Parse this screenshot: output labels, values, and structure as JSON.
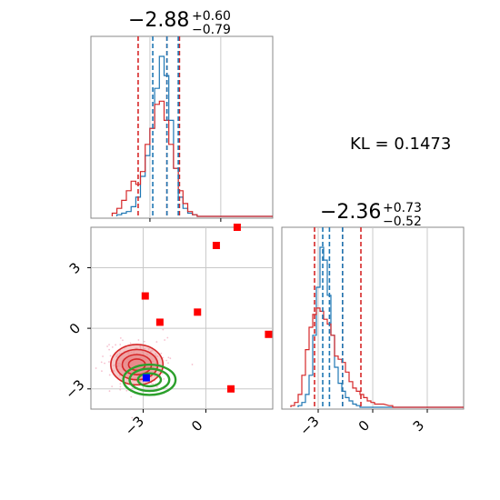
{
  "colors": {
    "blue": "#1f77b4",
    "red": "#d62728",
    "green": "#2ca02c",
    "marker_red": "#ff0000",
    "marker_blue": "#0000ff",
    "fill_red": "#e8898a",
    "grid": "#c8c8c8",
    "frame": "#888888"
  },
  "annotation": {
    "kl_text": "KL = 0.1473"
  },
  "chart_data": [
    {
      "type": "histogram",
      "panel": "top-left",
      "title": {
        "value": "−2.88",
        "upper": "+0.60",
        "lower": "−0.79"
      },
      "xlim": [
        -5.5,
        2.2
      ],
      "grid": true,
      "vlines": {
        "blue": [
          -2.88,
          -2.28,
          -1.8
        ],
        "red": [
          -3.5,
          -2.28,
          -1.75
        ]
      },
      "series": [
        {
          "color": "blue",
          "bin_centers": [
            -4.3,
            -4.1,
            -3.9,
            -3.7,
            -3.5,
            -3.3,
            -3.1,
            -2.9,
            -2.7,
            -2.5,
            -2.3,
            -2.1,
            -1.9,
            -1.7,
            -1.5,
            -1.3,
            -1.1,
            -0.9
          ],
          "heights": [
            0.01,
            0.02,
            0.03,
            0.06,
            0.12,
            0.25,
            0.38,
            0.55,
            0.8,
            1.0,
            0.88,
            0.6,
            0.3,
            0.12,
            0.05,
            0.02,
            0.01,
            0.0
          ]
        },
        {
          "color": "red",
          "bin_centers": [
            -4.5,
            -4.3,
            -4.1,
            -3.9,
            -3.7,
            -3.5,
            -3.3,
            -3.1,
            -2.9,
            -2.7,
            -2.5,
            -2.3,
            -2.1,
            -1.9,
            -1.7,
            -1.5,
            -1.3,
            -1.1
          ],
          "heights": [
            0.02,
            0.05,
            0.1,
            0.16,
            0.22,
            0.2,
            0.28,
            0.45,
            0.55,
            0.7,
            0.72,
            0.6,
            0.45,
            0.3,
            0.16,
            0.08,
            0.03,
            0.01
          ]
        }
      ]
    },
    {
      "type": "histogram",
      "panel": "bottom-right",
      "title": {
        "value": "−2.36",
        "upper": "+0.73",
        "lower": "−0.52"
      },
      "xlim": [
        -5,
        5
      ],
      "xticks": [
        "−3",
        "0",
        "3"
      ],
      "tick_values": [
        -3,
        0,
        3
      ],
      "grid": true,
      "vlines": {
        "blue": [
          -2.75,
          -2.38,
          -1.66
        ],
        "red": [
          -3.2,
          -1.66,
          -0.65
        ]
      },
      "series": [
        {
          "color": "blue",
          "bin_centers": [
            -4.0,
            -3.8,
            -3.6,
            -3.4,
            -3.2,
            -3.0,
            -2.8,
            -2.6,
            -2.4,
            -2.2,
            -2.0,
            -1.8,
            -1.6,
            -1.4,
            -1.2,
            -1.0,
            -0.8,
            -0.6
          ],
          "heights": [
            0.01,
            0.03,
            0.08,
            0.2,
            0.45,
            0.75,
            1.0,
            0.92,
            0.7,
            0.45,
            0.25,
            0.15,
            0.1,
            0.06,
            0.04,
            0.02,
            0.01,
            0.0
          ]
        },
        {
          "color": "red",
          "bin_centers": [
            -4.4,
            -4.2,
            -4.0,
            -3.8,
            -3.6,
            -3.4,
            -3.2,
            -3.0,
            -2.8,
            -2.6,
            -2.4,
            -2.2,
            -2.0,
            -1.8,
            -1.6,
            -1.4,
            -1.2,
            -1.0,
            -0.8,
            -0.6,
            -0.4,
            -0.2,
            0.0,
            0.2,
            0.5,
            1.0
          ],
          "heights": [
            0.01,
            0.03,
            0.08,
            0.2,
            0.36,
            0.5,
            0.58,
            0.62,
            0.6,
            0.55,
            0.52,
            0.45,
            0.32,
            0.3,
            0.28,
            0.22,
            0.16,
            0.12,
            0.1,
            0.08,
            0.06,
            0.04,
            0.03,
            0.02,
            0.02,
            0.01
          ]
        }
      ]
    },
    {
      "type": "scatter",
      "panel": "bottom-left",
      "xlim": [
        -5.5,
        3.2
      ],
      "ylim": [
        -4.0,
        5.0
      ],
      "xticks": [
        "−3",
        "0"
      ],
      "xtick_values": [
        -3,
        0
      ],
      "yticks": [
        "3",
        "0",
        "−3"
      ],
      "ytick_values": [
        3,
        0,
        -3
      ],
      "grid": true,
      "red_squares": [
        [
          0.5,
          4.1
        ],
        [
          1.5,
          5.0
        ],
        [
          -2.9,
          1.6
        ],
        [
          -2.2,
          0.3
        ],
        [
          -0.4,
          0.8
        ],
        [
          3.0,
          -0.3
        ],
        [
          1.2,
          -3.0
        ]
      ],
      "blue_square": [
        -2.85,
        -2.45
      ],
      "red_contour_center": [
        -3.3,
        -1.8
      ],
      "red_contour_levels": [
        [
          1.25,
          1.0
        ],
        [
          1.0,
          0.75
        ],
        [
          0.7,
          0.5
        ],
        [
          0.4,
          0.28
        ]
      ],
      "green_contour_center": [
        -2.7,
        -2.55
      ],
      "green_contour_levels": [
        [
          1.25,
          0.75
        ],
        [
          0.95,
          0.55
        ],
        [
          0.55,
          0.32
        ]
      ]
    }
  ]
}
